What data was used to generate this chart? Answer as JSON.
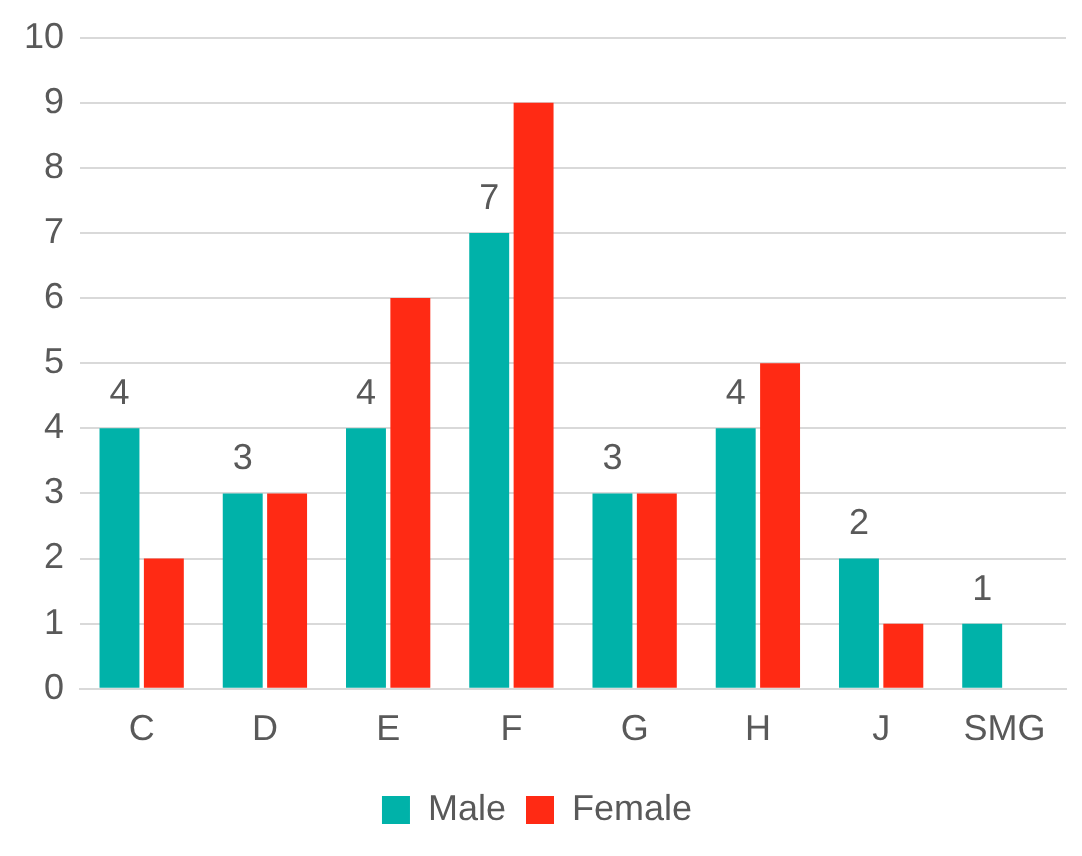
{
  "chart_data": {
    "type": "bar",
    "categories": [
      "C",
      "D",
      "E",
      "F",
      "G",
      "H",
      "J",
      "SMG"
    ],
    "series": [
      {
        "name": "Male",
        "color": "#00b2a9",
        "values": [
          4,
          3,
          4,
          7,
          3,
          4,
          2,
          1
        ],
        "value_labels": [
          "4",
          "3",
          "4",
          "7",
          "3",
          "4",
          "2",
          "1"
        ]
      },
      {
        "name": "Female",
        "color": "#ff2a14",
        "values": [
          2,
          3,
          6,
          9,
          3,
          5,
          1,
          0
        ]
      }
    ],
    "ylim": [
      0,
      10
    ],
    "yticks": [
      0,
      1,
      2,
      3,
      4,
      5,
      6,
      7,
      8,
      9,
      10
    ],
    "grid": "y",
    "legend": "bottom"
  }
}
